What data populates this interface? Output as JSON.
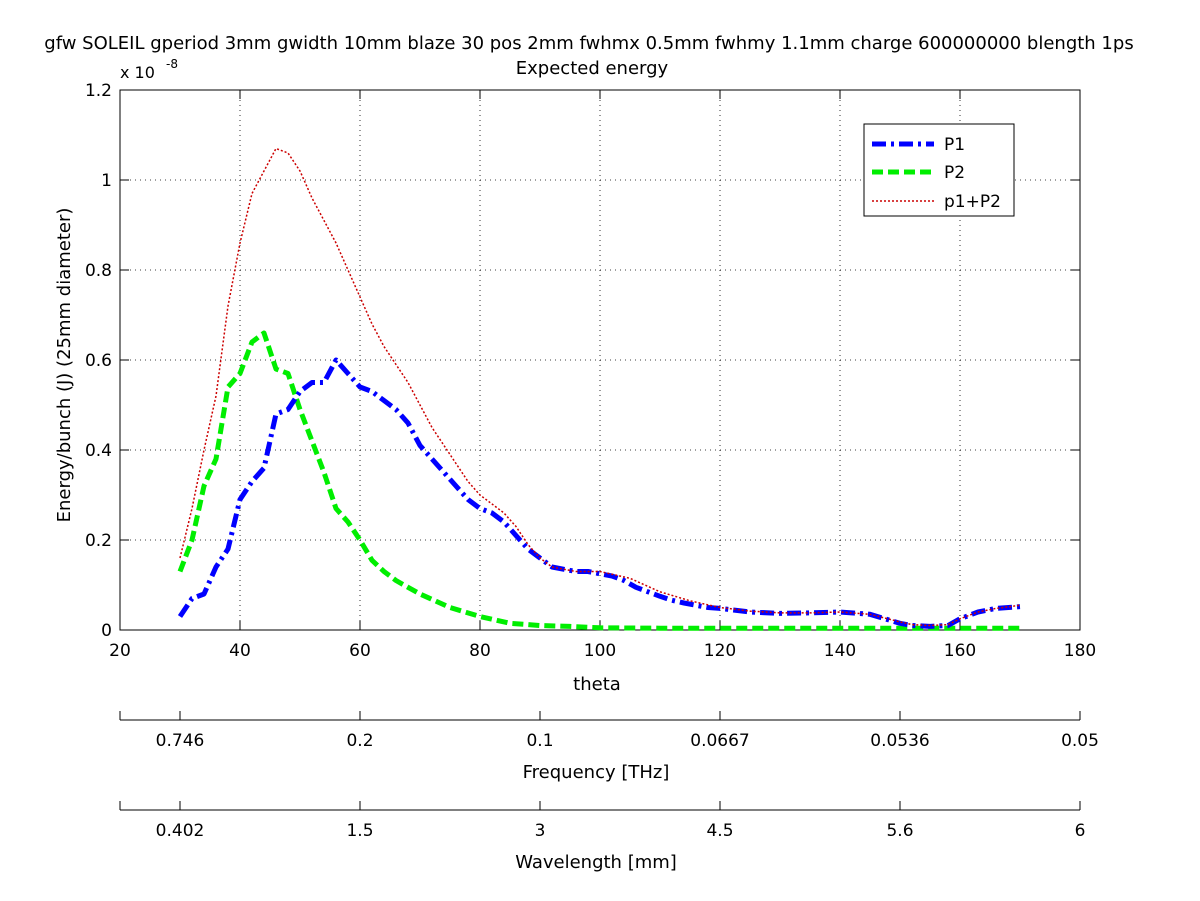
{
  "chart_data": {
    "type": "line",
    "title": "gfw SOLEIL gperiod 3mm gwidth 10mm blaze 30 pos 2mm fwhmx 0.5mm fwhmy 1.1mm charge 600000000 blength 1ps",
    "subtitle": "Expected energy",
    "xlabel": "theta",
    "ylabel": "Energy/bunch (J) (25mm diameter)",
    "y_multiplier_base": "x 10",
    "y_multiplier_exp": "-8",
    "xlim": [
      20,
      180
    ],
    "ylim": [
      0,
      1.2
    ],
    "x_ticks": [
      20,
      40,
      60,
      80,
      100,
      120,
      140,
      160,
      180
    ],
    "y_ticks": [
      0,
      0.2,
      0.4,
      0.6,
      0.8,
      1,
      1.2
    ],
    "grid": true,
    "legend_position": "top-right",
    "series": [
      {
        "name": "P1",
        "color": "#0000ff",
        "style": "dashdot",
        "x": [
          30,
          32,
          34,
          36,
          38,
          40,
          42,
          44,
          46,
          48,
          50,
          52,
          54,
          56,
          58,
          60,
          62,
          64,
          66,
          68,
          70,
          72,
          74,
          76,
          78,
          80,
          82,
          84,
          86,
          88,
          90,
          92,
          94,
          96,
          98,
          100,
          102,
          104,
          106,
          108,
          110,
          112,
          114,
          116,
          118,
          120,
          125,
          130,
          135,
          140,
          145,
          150,
          152,
          155,
          158,
          160,
          163,
          166,
          170
        ],
        "y": [
          0.03,
          0.07,
          0.08,
          0.14,
          0.18,
          0.29,
          0.33,
          0.36,
          0.48,
          0.49,
          0.53,
          0.55,
          0.55,
          0.6,
          0.57,
          0.54,
          0.53,
          0.51,
          0.49,
          0.46,
          0.41,
          0.38,
          0.35,
          0.32,
          0.29,
          0.27,
          0.26,
          0.24,
          0.21,
          0.18,
          0.16,
          0.14,
          0.135,
          0.13,
          0.13,
          0.125,
          0.12,
          0.11,
          0.095,
          0.085,
          0.075,
          0.066,
          0.06,
          0.055,
          0.05,
          0.048,
          0.04,
          0.037,
          0.038,
          0.04,
          0.035,
          0.015,
          0.01,
          0.008,
          0.01,
          0.025,
          0.04,
          0.048,
          0.052
        ]
      },
      {
        "name": "P2",
        "color": "#00ee00",
        "style": "dashed",
        "x": [
          30,
          32,
          34,
          36,
          38,
          40,
          42,
          44,
          46,
          48,
          50,
          52,
          54,
          56,
          58,
          60,
          62,
          64,
          66,
          68,
          70,
          75,
          80,
          85,
          90,
          95,
          100,
          110,
          120,
          130,
          140,
          150,
          160,
          170
        ],
        "y": [
          0.13,
          0.2,
          0.32,
          0.38,
          0.54,
          0.57,
          0.64,
          0.66,
          0.58,
          0.57,
          0.49,
          0.42,
          0.35,
          0.27,
          0.24,
          0.2,
          0.155,
          0.13,
          0.11,
          0.095,
          0.08,
          0.05,
          0.03,
          0.015,
          0.01,
          0.008,
          0.005,
          0.004,
          0.004,
          0.004,
          0.004,
          0.004,
          0.004,
          0.004
        ]
      },
      {
        "name": "p1+P2",
        "color": "#cc0000",
        "style": "dotted",
        "x": [
          30,
          32,
          34,
          36,
          38,
          40,
          42,
          44,
          46,
          48,
          50,
          52,
          54,
          56,
          58,
          60,
          62,
          64,
          66,
          68,
          70,
          72,
          74,
          76,
          78,
          80,
          82,
          84,
          86,
          88,
          90,
          92,
          94,
          96,
          98,
          100,
          105,
          110,
          115,
          120,
          125,
          130,
          135,
          140,
          145,
          150,
          152,
          155,
          158,
          160,
          163,
          166,
          170
        ],
        "y": [
          0.16,
          0.27,
          0.4,
          0.52,
          0.72,
          0.86,
          0.97,
          1.02,
          1.07,
          1.06,
          1.02,
          0.96,
          0.91,
          0.86,
          0.8,
          0.74,
          0.68,
          0.63,
          0.59,
          0.55,
          0.5,
          0.45,
          0.41,
          0.37,
          0.33,
          0.3,
          0.28,
          0.26,
          0.23,
          0.19,
          0.16,
          0.14,
          0.135,
          0.13,
          0.13,
          0.13,
          0.115,
          0.085,
          0.065,
          0.05,
          0.042,
          0.038,
          0.038,
          0.04,
          0.035,
          0.018,
          0.012,
          0.01,
          0.012,
          0.025,
          0.04,
          0.048,
          0.055
        ]
      }
    ],
    "secondary_axes": [
      {
        "label": "Frequency [THz]",
        "ticks": [
          "0.746",
          "0.2",
          "0.1",
          "0.0667",
          "0.0536",
          "0.05"
        ]
      },
      {
        "label": "Wavelength [mm]",
        "ticks": [
          "0.402",
          "1.5",
          "3",
          "4.5",
          "5.6",
          "6"
        ]
      }
    ]
  }
}
